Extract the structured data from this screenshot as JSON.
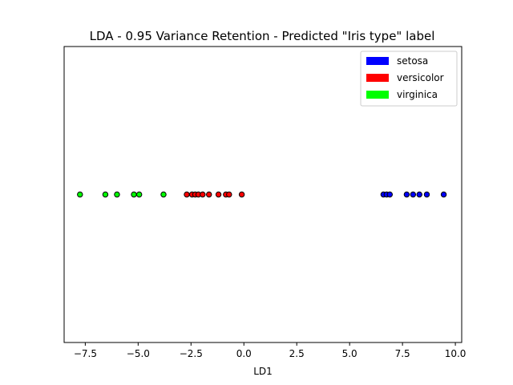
{
  "chart_data": {
    "type": "scatter",
    "title": "LDA - 0.95 Variance Retention - Predicted \"Iris type\" label",
    "xlabel": "LD1",
    "ylabel": "",
    "xlim": [
      -8.5,
      10.3
    ],
    "xticks": [
      -7.5,
      -5.0,
      -2.5,
      0.0,
      2.5,
      5.0,
      7.5,
      10.0
    ],
    "xtick_labels": [
      "−7.5",
      "−5.0",
      "−2.5",
      "0.0",
      "2.5",
      "5.0",
      "7.5",
      "10.0"
    ],
    "y_axis_visible": false,
    "grid": false,
    "legend_position": "top-right",
    "series": [
      {
        "name": "setosa",
        "color": "#0000ff",
        "x": [
          6.6,
          6.75,
          6.9,
          7.7,
          8.0,
          8.3,
          8.65,
          9.45
        ],
        "y": [
          0,
          0,
          0,
          0,
          0,
          0,
          0,
          0
        ]
      },
      {
        "name": "versicolor",
        "color": "#ff0000",
        "x": [
          -2.7,
          -2.45,
          -2.3,
          -2.15,
          -1.95,
          -1.65,
          -1.2,
          -0.85,
          -0.7,
          -0.1
        ],
        "y": [
          0,
          0,
          0,
          0,
          0,
          0,
          0,
          0,
          0,
          0
        ]
      },
      {
        "name": "virginica",
        "color": "#00ff00",
        "x": [
          -7.75,
          -6.55,
          -6.0,
          -5.2,
          -4.95,
          -3.8
        ],
        "y": [
          0,
          0,
          0,
          0,
          0,
          0
        ]
      }
    ]
  }
}
